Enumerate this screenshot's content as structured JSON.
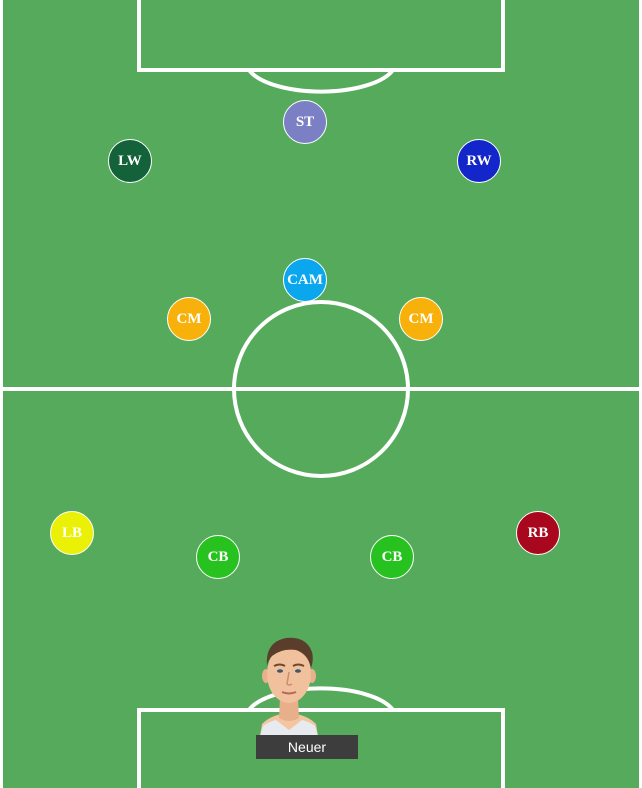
{
  "pitch": {
    "grass_color": "#55aa5c",
    "line_color": "#ffffff"
  },
  "positions": [
    {
      "id": "st",
      "label": "ST",
      "color": "#7b80c4"
    },
    {
      "id": "lw",
      "label": "LW",
      "color": "#13623a"
    },
    {
      "id": "rw",
      "label": "RW",
      "color": "#1226c9"
    },
    {
      "id": "cam",
      "label": "CAM",
      "color": "#0aa7ef"
    },
    {
      "id": "cm-left",
      "label": "CM",
      "color": "#f8b10a"
    },
    {
      "id": "cm-right",
      "label": "CM",
      "color": "#f8b10a"
    },
    {
      "id": "lb",
      "label": "LB",
      "color": "#eaf106"
    },
    {
      "id": "cb-left",
      "label": "CB",
      "color": "#27c21f"
    },
    {
      "id": "cb-right",
      "label": "CB",
      "color": "#27c21f"
    },
    {
      "id": "rb",
      "label": "RB",
      "color": "#a8071e"
    }
  ],
  "goalkeeper": {
    "name": "Neuer",
    "photo_icon": "player-portrait-icon"
  }
}
